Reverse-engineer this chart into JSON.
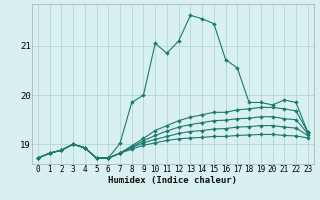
{
  "xlabel": "Humidex (Indice chaleur)",
  "bg_color": "#d8f0f0",
  "grid_color": "#b8dada",
  "line_color": "#1a7a6e",
  "xlim": [
    -0.5,
    23.5
  ],
  "ylim": [
    18.6,
    21.85
  ],
  "yticks": [
    19,
    20,
    21
  ],
  "xticks": [
    0,
    1,
    2,
    3,
    4,
    5,
    6,
    7,
    8,
    9,
    10,
    11,
    12,
    13,
    14,
    15,
    16,
    17,
    18,
    19,
    20,
    21,
    22,
    23
  ],
  "series": [
    [
      18.72,
      18.82,
      18.88,
      19.0,
      18.93,
      18.72,
      18.72,
      19.02,
      19.85,
      20.0,
      21.05,
      20.85,
      21.1,
      21.62,
      21.55,
      21.45,
      20.72,
      20.55,
      19.85,
      19.85,
      19.8,
      19.9,
      19.85,
      19.25
    ],
    [
      18.72,
      18.82,
      18.88,
      19.0,
      18.93,
      18.72,
      18.72,
      18.82,
      18.97,
      19.12,
      19.28,
      19.38,
      19.48,
      19.55,
      19.6,
      19.65,
      19.65,
      19.7,
      19.72,
      19.75,
      19.75,
      19.72,
      19.68,
      19.25
    ],
    [
      18.72,
      18.82,
      18.88,
      19.0,
      18.93,
      18.72,
      18.72,
      18.82,
      18.95,
      19.07,
      19.18,
      19.27,
      19.35,
      19.4,
      19.44,
      19.48,
      19.49,
      19.52,
      19.53,
      19.56,
      19.56,
      19.52,
      19.5,
      19.22
    ],
    [
      18.72,
      18.82,
      18.88,
      19.0,
      18.93,
      18.72,
      18.72,
      18.82,
      18.93,
      19.03,
      19.1,
      19.16,
      19.22,
      19.26,
      19.28,
      19.31,
      19.32,
      19.35,
      19.36,
      19.38,
      19.38,
      19.35,
      19.33,
      19.18
    ],
    [
      18.72,
      18.82,
      18.88,
      19.0,
      18.93,
      18.72,
      18.72,
      18.82,
      18.9,
      18.98,
      19.03,
      19.08,
      19.11,
      19.13,
      19.14,
      19.16,
      19.16,
      19.18,
      19.19,
      19.2,
      19.2,
      19.18,
      19.17,
      19.13
    ]
  ]
}
